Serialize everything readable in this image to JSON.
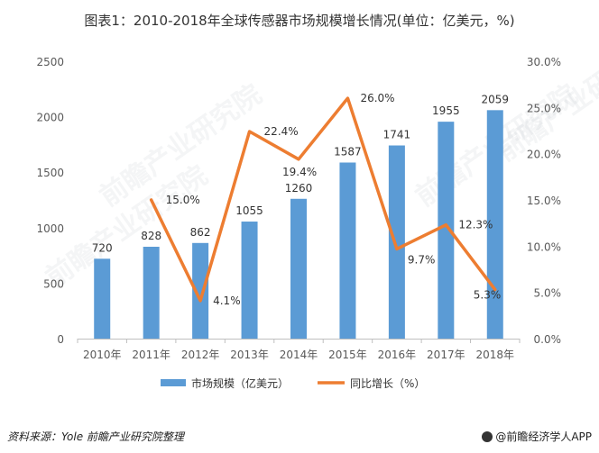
{
  "title": "图表1：2010-2018年全球传感器市场规模增长情况(单位：亿美元，%)",
  "footer": {
    "source": "资料来源：Yole 前瞻产业研究院整理",
    "brand": "@前瞻经济学人APP"
  },
  "watermark": "前瞻产业研究院",
  "colors": {
    "bar": "#5B9BD5",
    "line": "#ED7D31",
    "axis": "#595959",
    "grid": "#d9d9d9"
  },
  "chart_data": {
    "type": "bar+line",
    "categories": [
      "2010年",
      "2011年",
      "2012年",
      "2013年",
      "2014年",
      "2015年",
      "2016年",
      "2017年",
      "2018年"
    ],
    "series": [
      {
        "name": "市场规模（亿美元）",
        "type": "bar",
        "axis": "left",
        "values": [
          720,
          828,
          862,
          1055,
          1260,
          1587,
          1741,
          1955,
          2059
        ],
        "labels": [
          "720",
          "828",
          "862",
          "1055",
          "1260",
          "1587",
          "1741",
          "1955",
          "2059"
        ]
      },
      {
        "name": "同比增长（%）",
        "type": "line",
        "axis": "right",
        "values": [
          null,
          15.0,
          4.1,
          22.4,
          19.4,
          26.0,
          9.7,
          12.3,
          5.3
        ],
        "labels": [
          "",
          "15.0%",
          "4.1%",
          "22.4%",
          "19.4%",
          "26.0%",
          "9.7%",
          "12.3%",
          "5.3%"
        ]
      }
    ],
    "y_left": {
      "range": [
        0,
        2500
      ],
      "ticks": [
        "0",
        "500",
        "1000",
        "1500",
        "2000",
        "2500"
      ]
    },
    "y_right": {
      "range": [
        0,
        30
      ],
      "ticks": [
        "0.0%",
        "5.0%",
        "10.0%",
        "15.0%",
        "20.0%",
        "25.0%",
        "30.0%"
      ]
    },
    "legend": "bottom",
    "grid": false
  }
}
